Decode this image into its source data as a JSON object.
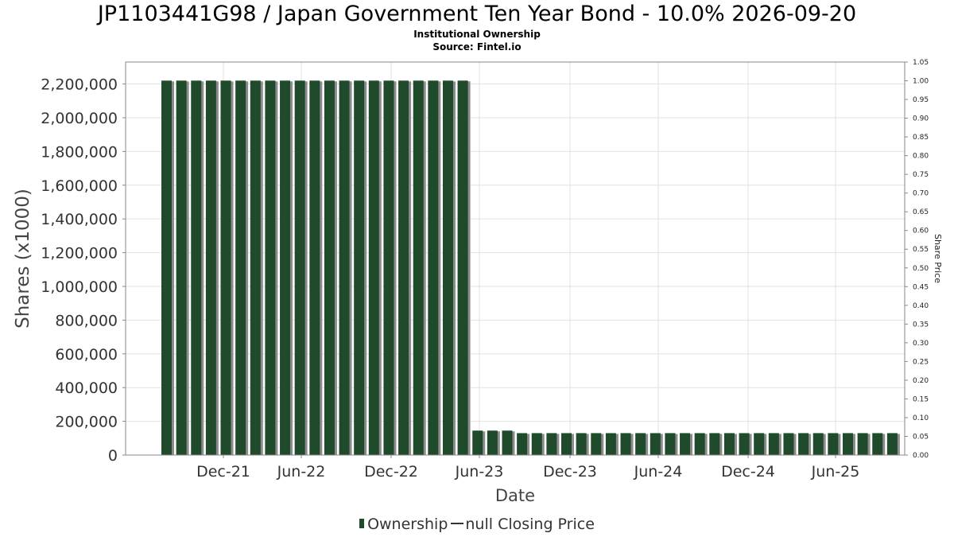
{
  "header": {
    "title": "JP1103441G98 / Japan Government Ten Year Bond - 10.0% 2026-09-20",
    "subtitle": "Institutional Ownership",
    "source": "Source: Fintel.io"
  },
  "colors": {
    "bar": "#1f4a2c",
    "bar_shadow": "#8c8c8c",
    "grid": "#e2e2e2",
    "axis": "#888888"
  },
  "chart_data": {
    "type": "bar",
    "xlabel": "Date",
    "ylabel": "Shares (x1000)",
    "y2label": "Share Price",
    "ylim": [
      0,
      2330000
    ],
    "y2lim": [
      0,
      1.05
    ],
    "grid": true,
    "legend_placement": "bottom",
    "y_ticks": [
      "0",
      "200,000",
      "400,000",
      "600,000",
      "800,000",
      "1,000,000",
      "1,200,000",
      "1,400,000",
      "1,600,000",
      "1,800,000",
      "2,000,000",
      "2,200,000"
    ],
    "y2_ticks": [
      "0.00",
      "0.05",
      "0.10",
      "0.15",
      "0.20",
      "0.25",
      "0.30",
      "0.35",
      "0.40",
      "0.45",
      "0.50",
      "0.55",
      "0.60",
      "0.65",
      "0.70",
      "0.75",
      "0.80",
      "0.85",
      "0.90",
      "0.95",
      "1.00",
      "1.05"
    ],
    "x_ticks": [
      "Dec-21",
      "Jun-22",
      "Dec-22",
      "Jun-23",
      "Dec-23",
      "Jun-24",
      "Dec-24",
      "Jun-25"
    ],
    "series": [
      {
        "name": "Ownership",
        "values": [
          2220000,
          2220000,
          2220000,
          2220000,
          2220000,
          2220000,
          2220000,
          2220000,
          2220000,
          2220000,
          2220000,
          2220000,
          2220000,
          2220000,
          2220000,
          2220000,
          2220000,
          2220000,
          2220000,
          2220000,
          2220000,
          145000,
          145000,
          145000,
          130000,
          130000,
          130000,
          130000,
          130000,
          130000,
          130000,
          130000,
          130000,
          130000,
          130000,
          130000,
          130000,
          130000,
          130000,
          130000,
          130000,
          130000,
          130000,
          130000,
          130000,
          130000,
          130000,
          130000,
          130000,
          130000
        ]
      },
      {
        "name": "null Closing Price",
        "values": []
      }
    ]
  }
}
